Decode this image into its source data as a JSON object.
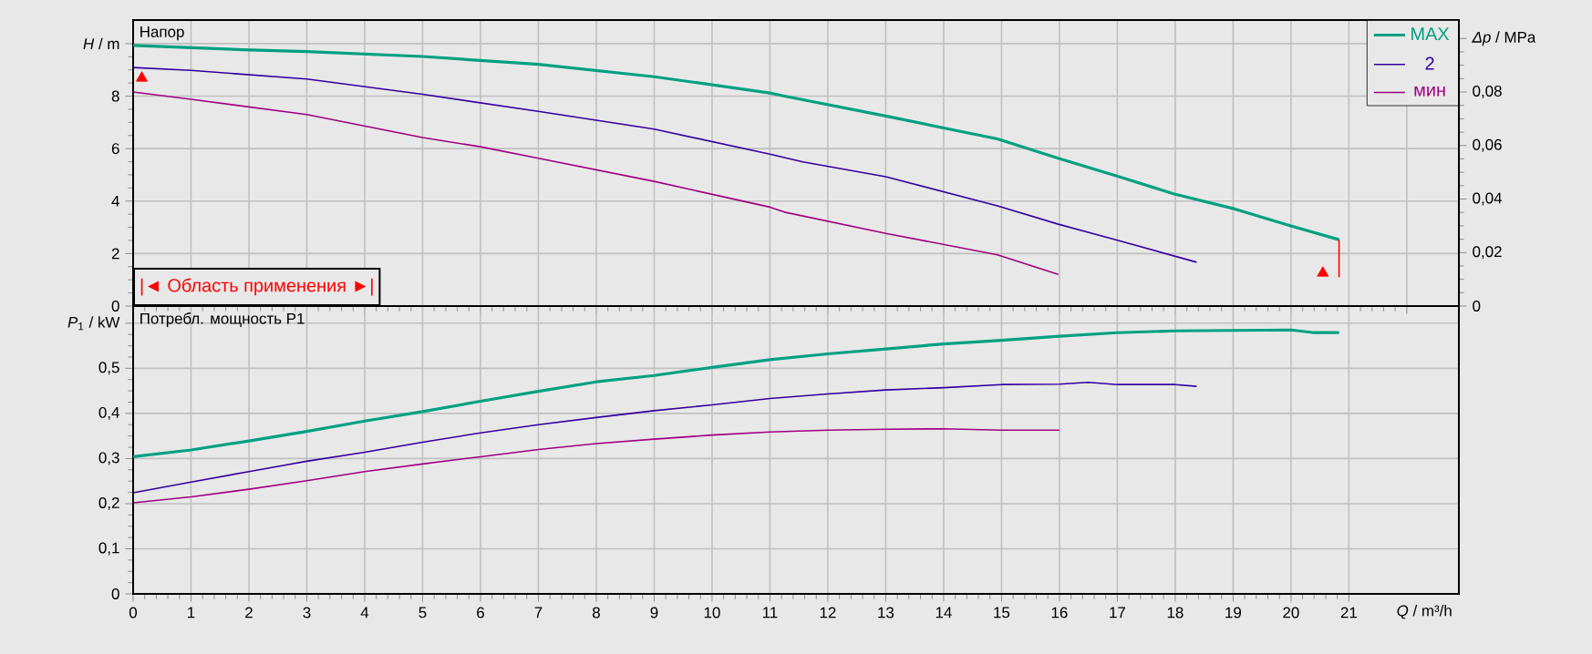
{
  "chart_data": [
    {
      "type": "line",
      "xlim": [
        0,
        22.9
      ],
      "ylim": [
        0,
        10.9
      ],
      "xticks": [
        0,
        1,
        2,
        3,
        4,
        5,
        6,
        7,
        8,
        9,
        10,
        11,
        12,
        13,
        14,
        15,
        16,
        17,
        18,
        19,
        20,
        21,
        22
      ],
      "yticks": [
        0,
        2,
        4,
        6,
        8,
        {
          "value": 10,
          "label": "*H* / m"
        }
      ],
      "y2lim": [
        0,
        0.1069
      ],
      "y2ticks": [
        0,
        {
          "value": 0.02,
          "label": "0,02"
        },
        {
          "value": 0.04,
          "label": "0,04"
        },
        {
          "value": 0.06,
          "label": "0,06"
        },
        {
          "value": 0.08,
          "label": "0,08"
        },
        {
          "value": 0.1,
          "label": "*Δp* / MPa"
        }
      ],
      "tick_labels": "y",
      "grid": true,
      "legend": "top right",
      "annotations": [
        "Напор",
        "|◄ Область применения ►|"
      ],
      "series": [
        {
          "name": "MAX",
          "color": "#00a080",
          "x": [
            0,
            1.9,
            3,
            5,
            7,
            9,
            11,
            11.25,
            13,
            14.93,
            15.98,
            17.03,
            17.97,
            19.03,
            19.97,
            20.83
          ],
          "values": [
            9.93,
            9.77,
            9.7,
            9.51,
            9.21,
            8.74,
            8.12,
            8.0,
            7.24,
            6.37,
            5.63,
            4.93,
            4.28,
            3.7,
            3.07,
            2.53
          ]
        },
        {
          "name": "2",
          "color": "#3300a0",
          "x": [
            0,
            1,
            3,
            5,
            7,
            9,
            11,
            11.57,
            13,
            14.93,
            15.98,
            17.03,
            18.37
          ],
          "values": [
            9.09,
            8.98,
            8.65,
            8.07,
            7.42,
            6.74,
            5.79,
            5.49,
            4.93,
            3.82,
            3.12,
            2.49,
            1.67
          ]
        },
        {
          "name": "мин",
          "color": "#a00080",
          "x": [
            0,
            1,
            3,
            5,
            6,
            7,
            9,
            11,
            11.25,
            13,
            14.93,
            15.98
          ],
          "values": [
            8.16,
            7.88,
            7.3,
            6.42,
            6.07,
            5.63,
            4.75,
            3.77,
            3.58,
            2.77,
            1.95,
            1.21
          ]
        },
        {
          "type": "scatter",
          "marker": "triangle",
          "color": "#ff0000",
          "x": [
            0.15,
            20.55
          ],
          "values": [
            8.69,
            1.26
          ]
        },
        {
          "type": "line",
          "color": "#ff0000",
          "x": [
            20.83,
            20.83
          ],
          "values": [
            2.53,
            1.1
          ]
        }
      ]
    },
    {
      "type": "line",
      "xlim": [
        0,
        22.9
      ],
      "ylim": [
        0,
        0.638
      ],
      "xticks": [
        0,
        1,
        2,
        3,
        4,
        5,
        6,
        7,
        8,
        9,
        10,
        11,
        12,
        13,
        14,
        15,
        16,
        17,
        18,
        19,
        20,
        21
      ],
      "yticks": [
        0,
        {
          "value": 0.1,
          "label": "0,1"
        },
        {
          "value": 0.2,
          "label": "0,2"
        },
        {
          "value": 0.3,
          "label": "0,3"
        },
        {
          "value": 0.4,
          "label": "0,4"
        },
        {
          "value": 0.5,
          "label": "0,5"
        },
        {
          "value": 0.6,
          "label": "*P*$_{1}$ / kW"
        }
      ],
      "xlabel": "*Q* / m³/h",
      "grid": true,
      "annotations": [
        "Потребл. мощность P1"
      ],
      "series": [
        {
          "color": "#00a080",
          "x": [
            0,
            1,
            2,
            3,
            4,
            5,
            6,
            7,
            8,
            9,
            10,
            11,
            12,
            13,
            14,
            15,
            16,
            17,
            18,
            19,
            20,
            20.4,
            20.83
          ],
          "values": [
            0.304,
            0.319,
            0.339,
            0.36,
            0.383,
            0.404,
            0.427,
            0.449,
            0.47,
            0.484,
            0.502,
            0.519,
            0.532,
            0.543,
            0.554,
            0.562,
            0.571,
            0.579,
            0.583,
            0.584,
            0.585,
            0.579,
            0.579
          ]
        },
        {
          "color": "#3300a0",
          "x": [
            0,
            1,
            2,
            3,
            4,
            5,
            6,
            7,
            8,
            9,
            10,
            11,
            12,
            13,
            14,
            15,
            16,
            16.5,
            17,
            18,
            18.37
          ],
          "values": [
            0.224,
            0.248,
            0.271,
            0.294,
            0.314,
            0.336,
            0.357,
            0.375,
            0.391,
            0.406,
            0.419,
            0.433,
            0.443,
            0.452,
            0.457,
            0.464,
            0.465,
            0.469,
            0.464,
            0.464,
            0.46
          ]
        },
        {
          "color": "#a00080",
          "x": [
            0,
            1,
            2,
            3,
            4,
            5,
            6,
            7,
            8,
            9,
            10,
            11,
            12,
            13,
            14,
            15,
            16
          ],
          "values": [
            0.202,
            0.215,
            0.232,
            0.251,
            0.271,
            0.288,
            0.304,
            0.32,
            0.333,
            0.343,
            0.352,
            0.359,
            0.363,
            0.365,
            0.366,
            0.363,
            0.363
          ]
        }
      ]
    }
  ]
}
